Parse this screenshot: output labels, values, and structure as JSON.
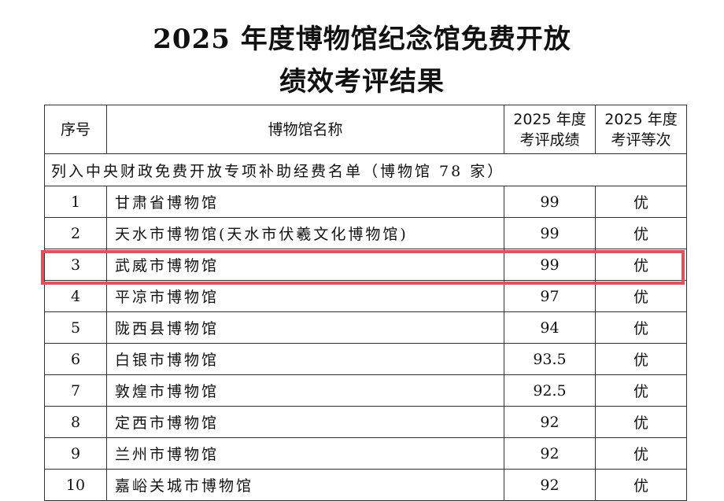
{
  "title": {
    "line1": "2025 年度博物馆纪念馆免费开放",
    "line2": "绩效考评结果"
  },
  "table": {
    "headers": {
      "no": "序号",
      "name": "博物馆名称",
      "score_l1": "2025 年度",
      "score_l2": "考评成绩",
      "grade_l1": "2025 年度",
      "grade_l2": "考评等次"
    },
    "section": "列入中央财政免费开放专项补助经费名单（博物馆 78 家）",
    "rows": [
      {
        "no": "1",
        "name": "甘肃省博物馆",
        "score": "99",
        "grade": "优"
      },
      {
        "no": "2",
        "name": "天水市博物馆(天水市伏羲文化博物馆)",
        "score": "99",
        "grade": "优"
      },
      {
        "no": "3",
        "name": "武威市博物馆",
        "score": "99",
        "grade": "优"
      },
      {
        "no": "4",
        "name": "平凉市博物馆",
        "score": "97",
        "grade": "优"
      },
      {
        "no": "5",
        "name": "陇西县博物馆",
        "score": "94",
        "grade": "优"
      },
      {
        "no": "6",
        "name": "白银市博物馆",
        "score": "93.5",
        "grade": "优"
      },
      {
        "no": "7",
        "name": "敦煌市博物馆",
        "score": "92.5",
        "grade": "优"
      },
      {
        "no": "8",
        "name": "定西市博物馆",
        "score": "92",
        "grade": "优"
      },
      {
        "no": "9",
        "name": "兰州市博物馆",
        "score": "92",
        "grade": "优"
      },
      {
        "no": "10",
        "name": "嘉峪关城市博物馆",
        "score": "92",
        "grade": "优"
      }
    ],
    "highlighted_row": "3",
    "highlight_color": "#d9545c"
  }
}
